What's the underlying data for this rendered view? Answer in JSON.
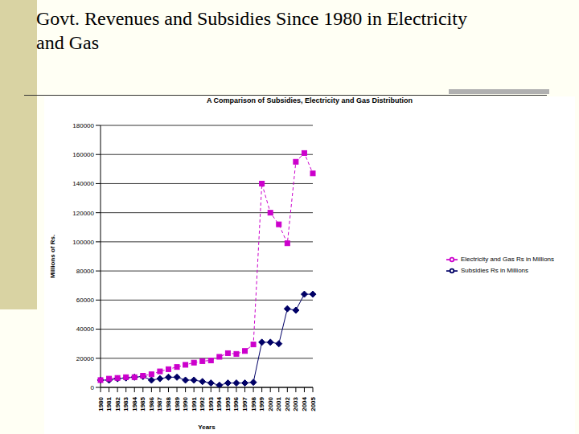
{
  "slide_title": "Govt. Revenues and Subsidies Since 1980 in Electricity and Gas",
  "chart_data": {
    "type": "line",
    "title": "A Comparison of Subsidies, Electricity and Gas Distribution",
    "x_label": "Years",
    "y_label": "Millions of Rs.",
    "categories": [
      "1980",
      "1981",
      "1982",
      "1983",
      "1984",
      "1985",
      "1986",
      "1987",
      "1988",
      "1989",
      "1990",
      "1991",
      "1992",
      "1993",
      "1994",
      "1995",
      "1996",
      "1997",
      "1998",
      "1999",
      "2000",
      "2001",
      "2002",
      "2003",
      "2004",
      "2005"
    ],
    "series": [
      {
        "name": "Subsidies Rs in Millions",
        "color": "#000066",
        "marker": "diamond",
        "line_style": "solid",
        "values": [
          5000,
          5000,
          6000,
          6500,
          7000,
          7500,
          5000,
          6000,
          7000,
          7000,
          5000,
          5000,
          4000,
          3000,
          1500,
          3000,
          3000,
          3000,
          3500,
          31000,
          31000,
          30000,
          54000,
          53000,
          64000,
          64000
        ]
      },
      {
        "name": "Electricity and Gas Rs in Millions",
        "color": "#CC00CC",
        "marker": "square",
        "line_style": "dashed",
        "values": [
          5000,
          6000,
          6500,
          7000,
          7000,
          8000,
          9000,
          11000,
          12500,
          14000,
          15500,
          17000,
          18000,
          18500,
          21000,
          23500,
          23000,
          25000,
          29500,
          140000,
          120000,
          112000,
          99000,
          155000,
          161000,
          147000
        ]
      }
    ],
    "ylim": [
      0,
      180000
    ],
    "yticks": [
      0,
      20000,
      40000,
      60000,
      80000,
      100000,
      120000,
      140000,
      160000,
      180000
    ],
    "grid": true,
    "legend": "right"
  }
}
